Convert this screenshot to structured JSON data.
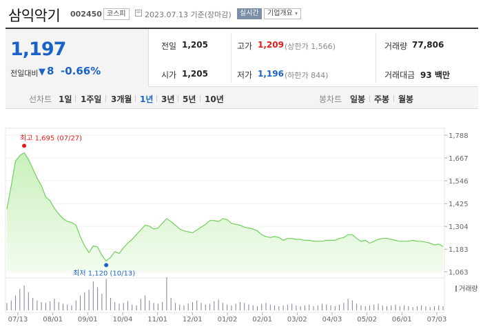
{
  "header": {
    "name": "삼익악기",
    "code": "002450",
    "market": "코스피",
    "date_text": "2023.07.13 기준(장마감)",
    "realtime_label": "실시간",
    "company_label": "기업개요",
    "company_caret": "▾"
  },
  "price": {
    "current": "1,197",
    "diff_label": "전일대비",
    "diff_arrow": "▼",
    "diff_value": "8",
    "diff_pct": "-0.66%"
  },
  "stats": {
    "prev_label": "전일",
    "prev_value": "1,205",
    "open_label": "시가",
    "open_value": "1,205",
    "high_label": "고가",
    "high_value": "1,209",
    "upper_limit": "(상한가 1,566)",
    "low_label": "저가",
    "low_value": "1,196",
    "lower_limit": "(하한가 844)",
    "volume_label": "거래량",
    "volume_value": "77,806",
    "amount_label": "거래대금",
    "amount_value": "93 백만"
  },
  "tabs": {
    "line_title": "선차트",
    "line_periods": [
      "1일",
      "1주일",
      "3개월",
      "1년",
      "3년",
      "5년",
      "10년"
    ],
    "active_period": "1년",
    "candle_title": "봉차트",
    "candle_periods": [
      "일봉",
      "주봉",
      "월봉"
    ]
  },
  "colors": {
    "up": "#e31a1a",
    "down": "#1a63c6",
    "line": "#6fcf5a",
    "area_top": "#c9f0bc",
    "area_bottom": "#f3fcef"
  },
  "chart_data": {
    "type": "area",
    "y_ticks": [
      "1,788",
      "1,667",
      "1,546",
      "1,425",
      "1,304",
      "1,183",
      "1,063"
    ],
    "ylim": [
      1063,
      1788
    ],
    "x_ticks": [
      "07/13",
      "08/01",
      "09/01",
      "10/04",
      "11/01",
      "12/01",
      "01/02",
      "02/01",
      "03/02",
      "04/03",
      "05/02",
      "06/01",
      "07/03"
    ],
    "high_label": "최고 1,695 (07/27)",
    "low_label": "최저 1,120 (10/13)",
    "volume_legend": "거래량",
    "series": [
      {
        "values": [
          1395,
          1520,
          1650,
          1680,
          1695,
          1660,
          1610,
          1560,
          1520,
          1460,
          1440,
          1400,
          1370,
          1345,
          1330,
          1325,
          1310,
          1250,
          1200,
          1165,
          1200,
          1195,
          1150,
          1120,
          1140,
          1170,
          1160,
          1190,
          1215,
          1235,
          1260,
          1285,
          1310,
          1305,
          1290,
          1295,
          1320,
          1345,
          1330,
          1310,
          1290,
          1280,
          1275,
          1270,
          1285,
          1300,
          1315,
          1335,
          1335,
          1330,
          1345,
          1340,
          1320,
          1315,
          1310,
          1300,
          1295,
          1290,
          1280,
          1260,
          1250,
          1245,
          1250,
          1245,
          1230,
          1240,
          1240,
          1235,
          1235,
          1230,
          1230,
          1225,
          1225,
          1225,
          1230,
          1230,
          1230,
          1240,
          1245,
          1260,
          1260,
          1240,
          1225,
          1230,
          1215,
          1225,
          1235,
          1240,
          1240,
          1235,
          1230,
          1225,
          1225,
          1225,
          1230,
          1225,
          1225,
          1220,
          1215,
          1205,
          1210,
          1197
        ]
      },
      {
        "name": "거래량",
        "values": [
          9,
          12,
          18,
          26,
          30,
          22,
          15,
          12,
          10,
          9,
          11,
          14,
          10,
          8,
          7,
          6,
          12,
          18,
          22,
          25,
          35,
          28,
          20,
          38,
          15,
          10,
          8,
          9,
          11,
          7,
          6,
          14,
          18,
          12,
          9,
          8,
          10,
          40,
          15,
          9,
          7,
          6,
          8,
          10,
          12,
          9,
          7,
          8,
          11,
          13,
          9,
          7,
          6,
          8,
          10,
          9,
          7,
          6,
          5,
          8,
          9,
          7,
          6,
          5,
          6,
          7,
          8,
          6,
          5,
          6,
          7,
          5,
          6,
          8,
          7,
          6,
          5,
          7,
          9,
          14,
          12,
          8,
          6,
          5,
          6,
          7,
          8,
          6,
          5,
          6,
          7,
          5,
          6,
          5,
          4,
          5,
          6,
          5,
          4,
          5,
          6,
          5
        ]
      }
    ]
  }
}
